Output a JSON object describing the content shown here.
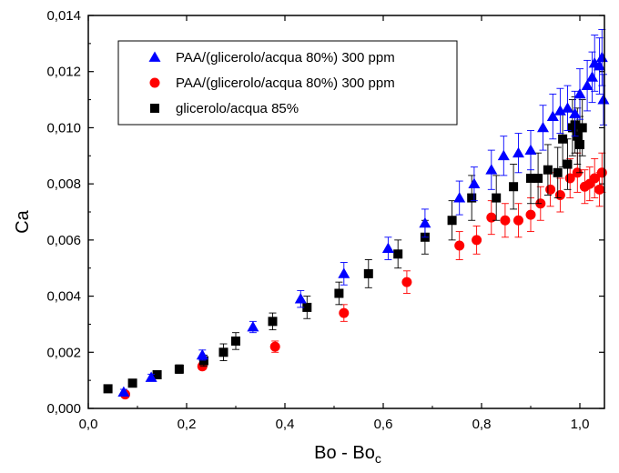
{
  "chart_data": {
    "type": "scatter",
    "xlabel": "Bo - Bo",
    "xlabel_subscript": "c",
    "ylabel": "Ca",
    "xlim": [
      0.0,
      1.05
    ],
    "ylim": [
      0.0,
      0.014
    ],
    "x_ticks": [
      {
        "value": 0.0,
        "label": "0,0"
      },
      {
        "value": 0.2,
        "label": "0,2"
      },
      {
        "value": 0.4,
        "label": "0,4"
      },
      {
        "value": 0.6,
        "label": "0,6"
      },
      {
        "value": 0.8,
        "label": "0,8"
      },
      {
        "value": 1.0,
        "label": "1,0"
      }
    ],
    "y_ticks": [
      {
        "value": 0.0,
        "label": "0,000"
      },
      {
        "value": 0.002,
        "label": "0,002"
      },
      {
        "value": 0.004,
        "label": "0,004"
      },
      {
        "value": 0.006,
        "label": "0,006"
      },
      {
        "value": 0.008,
        "label": "0,008"
      },
      {
        "value": 0.01,
        "label": "0,010"
      },
      {
        "value": 0.012,
        "label": "0,012"
      },
      {
        "value": 0.014,
        "label": "0,014"
      }
    ],
    "legend_position": "top-left",
    "grid": false,
    "series": [
      {
        "name": "PAA/(glicerolo/acqua 80%) 300 ppm",
        "marker": "triangle",
        "color": "#0000ff",
        "points": [
          [
            0.072,
            0.00058,
            0.0001
          ],
          [
            0.128,
            0.0011,
            0.00012
          ],
          [
            0.232,
            0.0019,
            0.00018
          ],
          [
            0.335,
            0.0029,
            0.0002
          ],
          [
            0.432,
            0.0039,
            0.0003
          ],
          [
            0.52,
            0.0048,
            0.0004
          ],
          [
            0.61,
            0.0057,
            0.0004
          ],
          [
            0.685,
            0.0066,
            0.0005
          ],
          [
            0.755,
            0.0075,
            0.0006
          ],
          [
            0.785,
            0.008,
            0.0006
          ],
          [
            0.82,
            0.0085,
            0.0007
          ],
          [
            0.845,
            0.009,
            0.0007
          ],
          [
            0.875,
            0.0091,
            0.0007
          ],
          [
            0.9,
            0.0092,
            0.0007
          ],
          [
            0.925,
            0.01,
            0.0008
          ],
          [
            0.945,
            0.0104,
            0.0008
          ],
          [
            0.96,
            0.0106,
            0.0008
          ],
          [
            0.975,
            0.0107,
            0.0008
          ],
          [
            0.99,
            0.0105,
            0.0008
          ],
          [
            1.0,
            0.0112,
            0.0009
          ],
          [
            1.015,
            0.0115,
            0.0009
          ],
          [
            1.025,
            0.0118,
            0.0009
          ],
          [
            1.03,
            0.0123,
            0.001
          ],
          [
            1.04,
            0.0122,
            0.001
          ],
          [
            1.045,
            0.0125,
            0.001
          ],
          [
            1.048,
            0.011,
            0.0009
          ]
        ]
      },
      {
        "name": "PAA/(glicerolo/acqua 80%) 300 ppm",
        "marker": "circle",
        "color": "#ff0000",
        "points": [
          [
            0.075,
            0.0005,
            5e-05
          ],
          [
            0.232,
            0.0015,
            0.00012
          ],
          [
            0.38,
            0.0022,
            0.0002
          ],
          [
            0.52,
            0.0034,
            0.0003
          ],
          [
            0.648,
            0.0045,
            0.0004
          ],
          [
            0.755,
            0.0058,
            0.0005
          ],
          [
            0.79,
            0.006,
            0.0005
          ],
          [
            0.82,
            0.0068,
            0.0006
          ],
          [
            0.848,
            0.0067,
            0.0006
          ],
          [
            0.875,
            0.0067,
            0.0006
          ],
          [
            0.9,
            0.0069,
            0.0006
          ],
          [
            0.92,
            0.0073,
            0.0006
          ],
          [
            0.94,
            0.0078,
            0.0006
          ],
          [
            0.96,
            0.0076,
            0.0006
          ],
          [
            0.98,
            0.0082,
            0.0007
          ],
          [
            0.995,
            0.0084,
            0.0007
          ],
          [
            1.01,
            0.0079,
            0.0006
          ],
          [
            1.02,
            0.008,
            0.0006
          ],
          [
            1.03,
            0.0082,
            0.0007
          ],
          [
            1.04,
            0.0078,
            0.0006
          ],
          [
            1.045,
            0.0084,
            0.0007
          ]
        ]
      },
      {
        "name": "glicerolo/acqua 85%",
        "marker": "square",
        "color": "#000000",
        "points": [
          [
            0.04,
            0.0007,
            6e-05
          ],
          [
            0.09,
            0.0009,
            0.0001
          ],
          [
            0.14,
            0.0012,
            0.00012
          ],
          [
            0.185,
            0.0014,
            0.00015
          ],
          [
            0.235,
            0.0017,
            0.0002
          ],
          [
            0.275,
            0.002,
            0.0003
          ],
          [
            0.3,
            0.0024,
            0.0003
          ],
          [
            0.375,
            0.0031,
            0.0003
          ],
          [
            0.445,
            0.0036,
            0.0004
          ],
          [
            0.51,
            0.0041,
            0.0004
          ],
          [
            0.57,
            0.0048,
            0.0005
          ],
          [
            0.63,
            0.0055,
            0.0005
          ],
          [
            0.685,
            0.0061,
            0.0006
          ],
          [
            0.74,
            0.0067,
            0.0007
          ],
          [
            0.78,
            0.0075,
            0.0008
          ],
          [
            0.83,
            0.0075,
            0.0008
          ],
          [
            0.865,
            0.0079,
            0.0008
          ],
          [
            0.9,
            0.0082,
            0.0009
          ],
          [
            0.915,
            0.0082,
            0.0009
          ],
          [
            0.935,
            0.0085,
            0.0009
          ],
          [
            0.955,
            0.0084,
            0.0009
          ],
          [
            0.965,
            0.0096,
            0.001
          ],
          [
            0.975,
            0.0087,
            0.0009
          ],
          [
            0.985,
            0.01,
            0.001
          ],
          [
            0.99,
            0.0101,
            0.001
          ],
          [
            0.995,
            0.0097,
            0.001
          ],
          [
            1.0,
            0.0094,
            0.001
          ],
          [
            1.005,
            0.01,
            0.001
          ]
        ]
      }
    ]
  }
}
